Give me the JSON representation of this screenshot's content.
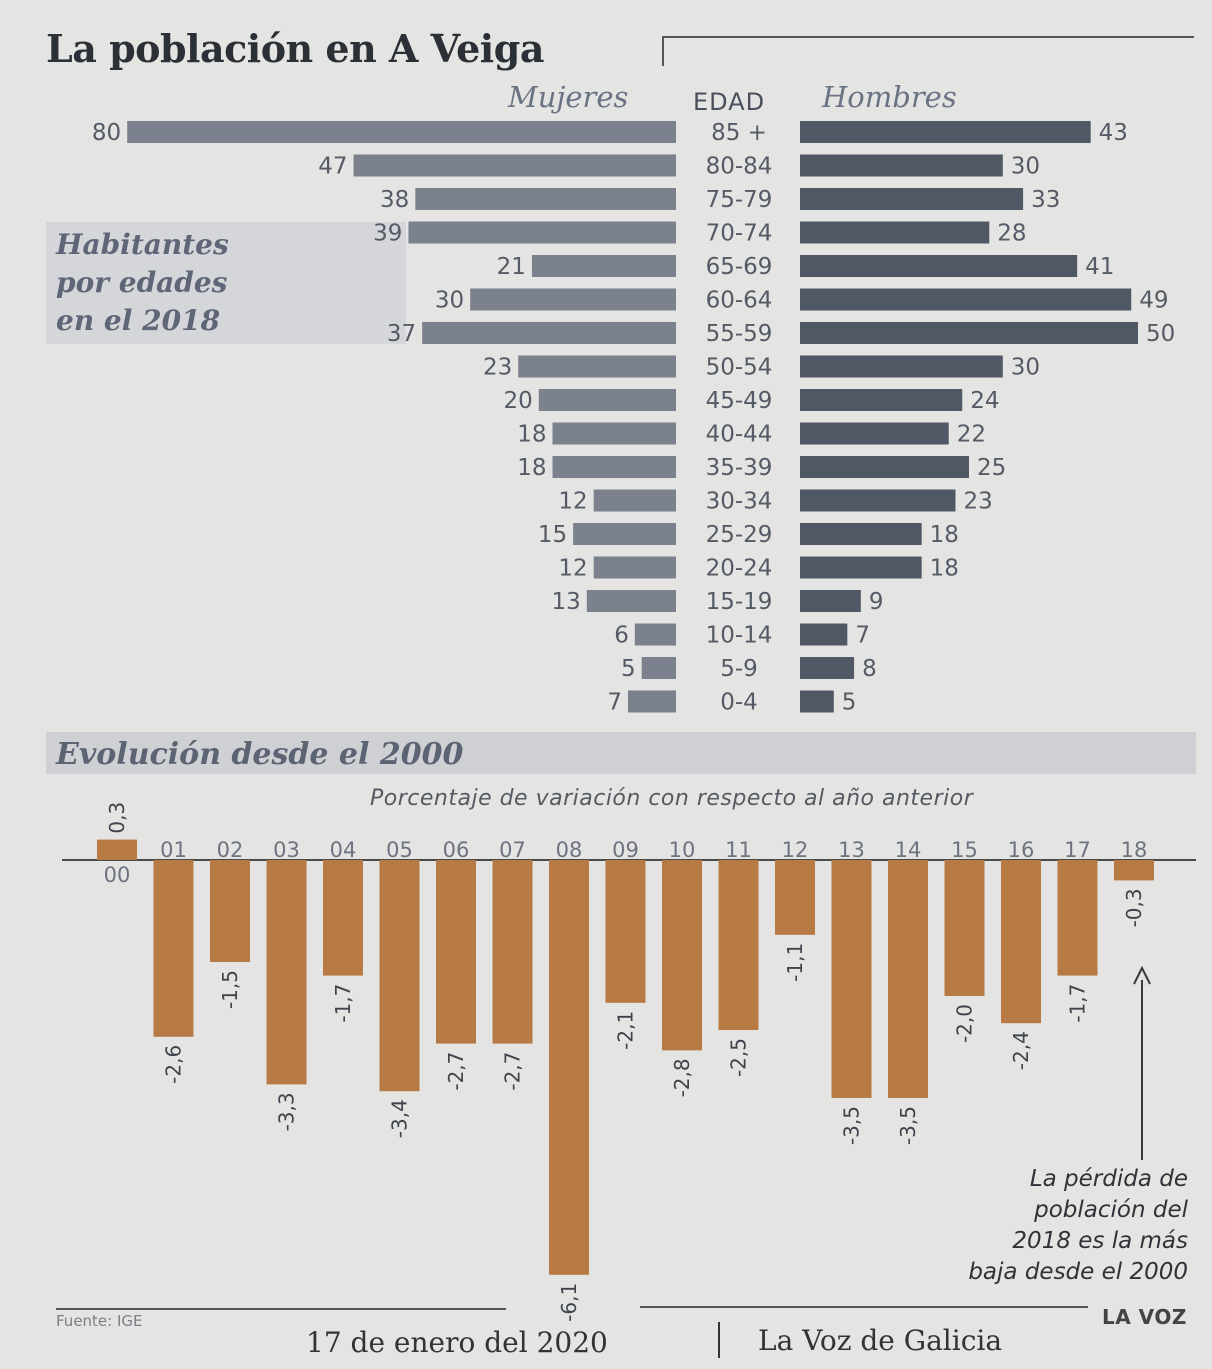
{
  "title": "La población en A Veiga",
  "pyramid_headers": {
    "women": "Mujeres",
    "age": "EDAD",
    "men": "Hombres"
  },
  "side_label": [
    "Habitantes",
    "por edades",
    "en el 2018"
  ],
  "evolution_title": "Evolución desde el 2000",
  "evolution_subtitle": "Porcentaje de variación con respecto al año anterior",
  "note": [
    "La pérdida de",
    "población del",
    "2018 es la más",
    "baja desde el 2000"
  ],
  "source": "Fuente: IGE",
  "brand": "LA VOZ",
  "footer_date": "17 de enero del 2020",
  "footer_paper": "La Voz de Galicia",
  "colors": {
    "pyramid_women": "#7b818d",
    "pyramid_men": "#515865",
    "evolution_bar": "#b87a45",
    "background": "#e4e4e2"
  },
  "chart_data": [
    {
      "type": "bar",
      "orientation": "horizontal",
      "title": "Habitantes por edades en el 2018",
      "categories": [
        "85 +",
        "80-84",
        "75-79",
        "70-74",
        "65-69",
        "60-64",
        "55-59",
        "50-54",
        "45-49",
        "40-44",
        "35-39",
        "30-34",
        "25-29",
        "20-24",
        "15-19",
        "10-14",
        "5-9",
        "0-4"
      ],
      "series": [
        {
          "name": "Mujeres",
          "values": [
            80,
            47,
            38,
            39,
            21,
            30,
            37,
            23,
            20,
            18,
            18,
            12,
            15,
            12,
            13,
            6,
            5,
            7
          ]
        },
        {
          "name": "Hombres",
          "values": [
            43,
            30,
            33,
            28,
            41,
            49,
            50,
            30,
            24,
            22,
            25,
            23,
            18,
            18,
            9,
            7,
            8,
            5
          ]
        }
      ]
    },
    {
      "type": "bar",
      "title": "Evolución desde el 2000",
      "ylabel": "Porcentaje de variación con respecto al año anterior",
      "x": [
        "00",
        "01",
        "02",
        "03",
        "04",
        "05",
        "06",
        "07",
        "08",
        "09",
        "10",
        "11",
        "12",
        "13",
        "14",
        "15",
        "16",
        "17",
        "18"
      ],
      "labels": [
        "0,3",
        "-2,6",
        "-1,5",
        "-3,3",
        "-1,7",
        "-3,4",
        "-2,7",
        "-2,7",
        "-6,1",
        "-2,1",
        "-2,8",
        "-2,5",
        "-1,1",
        "-3,5",
        "-3,5",
        "-2,0",
        "-2,4",
        "-1,7",
        "-0,3"
      ],
      "values": [
        0.3,
        -2.6,
        -1.5,
        -3.3,
        -1.7,
        -3.4,
        -2.7,
        -2.7,
        -6.1,
        -2.1,
        -2.8,
        -2.5,
        -1.1,
        -3.5,
        -3.5,
        -2.0,
        -2.4,
        -1.7,
        -0.3
      ]
    }
  ]
}
